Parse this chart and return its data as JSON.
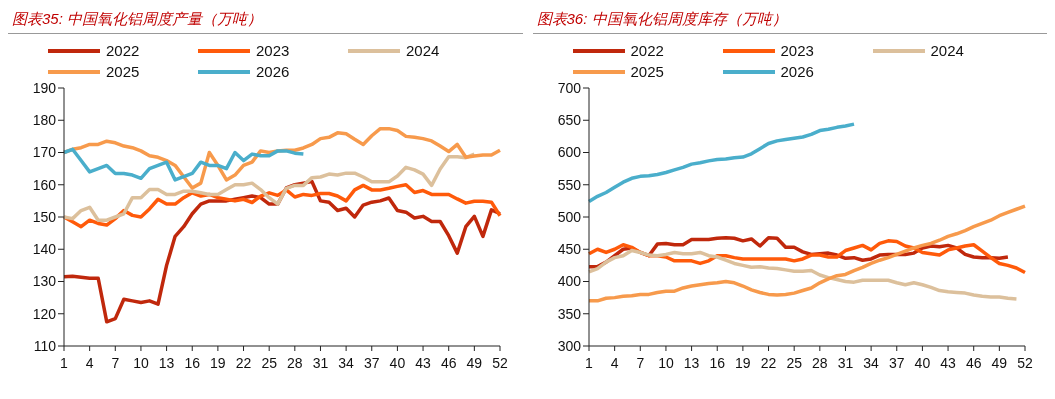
{
  "chart_data": [
    {
      "type": "line",
      "title": "图表35:  中国氧化铝周度产量（万吨）",
      "legend": "top",
      "ylim": [
        110,
        190
      ],
      "yticks": [
        110,
        120,
        130,
        140,
        150,
        160,
        170,
        180,
        190
      ],
      "categories": [
        "1",
        null,
        null,
        "4",
        null,
        null,
        "7",
        null,
        null,
        "10",
        null,
        null,
        "13",
        null,
        null,
        "16",
        null,
        null,
        "19",
        null,
        null,
        "22",
        null,
        null,
        "25",
        null,
        null,
        "28",
        null,
        null,
        "31",
        null,
        null,
        "34",
        null,
        null,
        "37",
        null,
        null,
        "40",
        null,
        null,
        "43",
        null,
        null,
        "46",
        null,
        null,
        "49",
        null,
        null,
        "52"
      ],
      "series": [
        {
          "name": "2022",
          "color": "#c0280c",
          "values": [
            131.5,
            131.6,
            131.3,
            131,
            131,
            117.5,
            118.5,
            124.5,
            124,
            123.5,
            124,
            123,
            135,
            144,
            147,
            151,
            154,
            155,
            155,
            155,
            155.5,
            156,
            156.5,
            156,
            154,
            154,
            159,
            160,
            160.5,
            161,
            155,
            154.6,
            152,
            152.7,
            150,
            153.7,
            154.6,
            155,
            155.9,
            152,
            151.5,
            149.7,
            150.2,
            148.6,
            148.6,
            144.2,
            138.8,
            147,
            150.2,
            144,
            152.2,
            151
          ]
        },
        {
          "name": "2023",
          "color": "#ff5a0a",
          "values": [
            150,
            148.5,
            147,
            149,
            148,
            147.5,
            149.5,
            152,
            150.5,
            150,
            152.5,
            155.5,
            154,
            154,
            156,
            157.5,
            156.5,
            157,
            156,
            155.5,
            155,
            155.5,
            154.5,
            156.5,
            157.5,
            156.7,
            158.4,
            156.2,
            157,
            156.7,
            157.3,
            157.3,
            156.5,
            155,
            158.4,
            159.8,
            158.4,
            158.4,
            158.9,
            159.5,
            160,
            157.6,
            158.2,
            157,
            157,
            157,
            155.6,
            154.3,
            154.9,
            154.9,
            154.6,
            150.4
          ]
        },
        {
          "name": "2024",
          "color": "#dcc09c",
          "values": [
            150,
            149.5,
            152,
            153,
            149,
            149,
            150,
            151,
            156,
            156,
            158.5,
            158.5,
            157,
            157,
            158,
            158,
            157.5,
            157,
            157,
            158.5,
            160,
            160,
            160.5,
            158.5,
            156,
            154,
            158.9,
            159.8,
            159.8,
            162.2,
            162.4,
            163.3,
            163,
            163.6,
            163.6,
            162.4,
            160.9,
            160.9,
            160.9,
            162.7,
            165.4,
            164.6,
            163.3,
            159.8,
            164.9,
            168.7,
            168.7,
            168.4,
            169.5,
            null,
            null,
            null
          ]
        },
        {
          "name": "2025",
          "color": "#f79a4c",
          "values": [
            170,
            171,
            171.5,
            172.5,
            172.5,
            173.5,
            173,
            172,
            171.5,
            170.5,
            169,
            168.5,
            167.5,
            166,
            162.5,
            159,
            160.5,
            170,
            166,
            161.5,
            163,
            166,
            167,
            170.5,
            170,
            170.5,
            170.7,
            170.7,
            171.4,
            172.5,
            174.3,
            174.7,
            176.1,
            175.8,
            174.1,
            172.5,
            175.2,
            177.4,
            177.4,
            176.8,
            175,
            174.7,
            174.3,
            173.6,
            172,
            170.3,
            172.5,
            168.5,
            168.9,
            169.2,
            169.2,
            170.7
          ]
        },
        {
          "name": "2026",
          "color": "#4aaecb",
          "values": [
            170,
            171,
            167.5,
            164,
            165,
            166,
            163.5,
            163.5,
            163,
            162,
            165,
            166,
            167,
            161.5,
            162.5,
            163.5,
            167,
            166,
            166,
            165,
            170,
            167.5,
            169.5,
            169,
            169,
            170.5,
            170.5,
            169.8,
            169.5,
            null,
            null,
            null,
            null,
            null,
            null,
            null,
            null,
            null,
            null,
            null,
            null,
            null,
            null,
            null,
            null,
            null,
            null,
            null,
            null,
            null,
            null,
            null
          ]
        }
      ]
    },
    {
      "type": "line",
      "title": "图表36:  中国氧化铝周度库存（万吨）",
      "legend": "top",
      "ylim": [
        300,
        700
      ],
      "yticks": [
        300,
        350,
        400,
        450,
        500,
        550,
        600,
        650,
        700
      ],
      "categories": [
        "1",
        null,
        null,
        "4",
        null,
        null,
        "7",
        null,
        null,
        "10",
        null,
        null,
        "13",
        null,
        null,
        "16",
        null,
        null,
        "19",
        null,
        null,
        "22",
        null,
        null,
        "25",
        null,
        null,
        "28",
        null,
        null,
        "31",
        null,
        null,
        "34",
        null,
        null,
        "37",
        null,
        null,
        "40",
        null,
        null,
        "43",
        null,
        null,
        "46",
        null,
        null,
        "49",
        null,
        null,
        "52"
      ],
      "series": [
        {
          "name": "2022",
          "color": "#c0280c",
          "values": [
            423,
            423,
            430,
            440,
            450,
            452,
            445,
            440,
            458,
            459,
            457,
            457,
            465,
            465,
            465,
            467,
            468,
            467,
            463,
            466,
            455,
            468,
            467,
            453,
            453,
            446,
            442,
            443,
            444,
            441,
            436,
            437,
            433,
            435,
            441,
            442,
            442,
            442,
            444,
            452,
            455,
            454,
            456,
            452,
            442,
            438,
            437,
            437,
            436,
            438,
            null,
            null
          ]
        },
        {
          "name": "2023",
          "color": "#ff5a0a",
          "values": [
            443,
            450,
            445,
            450,
            457,
            453,
            445,
            440,
            440,
            438,
            432,
            432,
            432,
            428,
            432,
            440,
            440,
            437,
            435,
            435,
            435,
            435,
            435,
            435,
            432,
            435,
            441,
            441,
            438,
            438,
            448,
            452,
            456,
            449,
            459,
            463,
            462,
            455,
            452,
            445,
            443,
            441,
            449,
            452,
            455,
            457,
            447,
            437,
            428,
            425,
            421,
            414
          ]
        },
        {
          "name": "2024",
          "color": "#dcc09c",
          "values": [
            415,
            420,
            430,
            437,
            440,
            448,
            445,
            441,
            440,
            442,
            445,
            443,
            443,
            445,
            440,
            438,
            433,
            428,
            425,
            422,
            423,
            421,
            420,
            418,
            416,
            416,
            417,
            410,
            406,
            403,
            400,
            399,
            402,
            402,
            402,
            402,
            398,
            395,
            398,
            395,
            391,
            386,
            384,
            383,
            382,
            379,
            377,
            376,
            376,
            374,
            373,
            null
          ]
        },
        {
          "name": "2025",
          "color": "#f79a4c",
          "values": [
            370,
            370,
            374,
            375,
            377,
            378,
            380,
            380,
            383,
            385,
            385,
            390,
            393,
            395,
            397,
            398,
            400,
            398,
            393,
            387,
            383,
            380,
            379,
            380,
            382,
            386,
            390,
            398,
            404,
            409,
            411,
            417,
            422,
            428,
            433,
            437,
            442,
            447,
            452,
            456,
            459,
            464,
            470,
            474,
            479,
            485,
            490,
            495,
            502,
            507,
            512,
            517
          ]
        },
        {
          "name": "2026",
          "color": "#4aaecb",
          "values": [
            524,
            532,
            538,
            546,
            554,
            560,
            563,
            564,
            566,
            569,
            573,
            577,
            582,
            584,
            587,
            589,
            590,
            592,
            593,
            598,
            606,
            614,
            618,
            620,
            622,
            624,
            628,
            634,
            636,
            639,
            641,
            644,
            null,
            null,
            null,
            null,
            null,
            null,
            null,
            null,
            null,
            null,
            null,
            null,
            null,
            null,
            null,
            null,
            null,
            null,
            null,
            null
          ]
        }
      ]
    }
  ]
}
